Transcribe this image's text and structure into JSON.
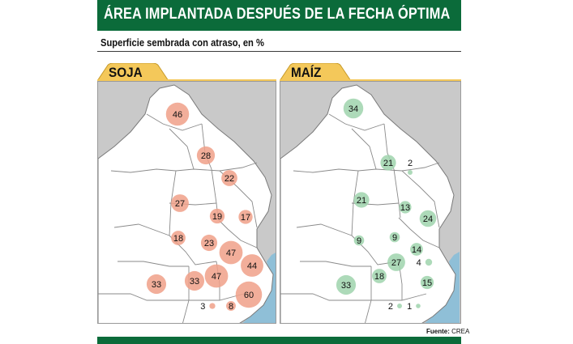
{
  "title": "ÁREA IMPLANTADA DESPUÉS DE LA FECHA ÓPTIMA",
  "subtitle": "Superficie sembrada con atraso, en %",
  "source_label": "Fuente:",
  "source_value": "CREA",
  "colors": {
    "header": "#0b6b3a",
    "soja_bubble": "#f0a088",
    "maiz_bubble": "#9fd3ad",
    "province_fill": "#ffffff",
    "background_fill": "#c9c9c9",
    "sea": "#8fbfd7",
    "tab_fill": "#f4c85a"
  },
  "maps": [
    {
      "label": "SOJA",
      "values": [
        {
          "region": "noa",
          "value": 46
        },
        {
          "region": "chaco",
          "value": 28
        },
        {
          "region": "norte-santa-fe",
          "value": 22
        },
        {
          "region": "norte-cordoba",
          "value": 27
        },
        {
          "region": "centro-santa-fe",
          "value": 19
        },
        {
          "region": "entre-rios",
          "value": 17
        },
        {
          "region": "sur-cordoba",
          "value": 18
        },
        {
          "region": "sur-santa-fe",
          "value": 23
        },
        {
          "region": "norte-buenos-aires",
          "value": 47
        },
        {
          "region": "buenos-aires-costa",
          "value": 44
        },
        {
          "region": "oeste-arenoso",
          "value": 33
        },
        {
          "region": "oeste",
          "value": 33
        },
        {
          "region": "centro-buenos-aires",
          "value": 47
        },
        {
          "region": "sudeste",
          "value": 60
        },
        {
          "region": "sur-bs-as-oeste",
          "value": 3
        },
        {
          "region": "sur-bs-as-este",
          "value": 8
        }
      ]
    },
    {
      "label": "MAÍZ",
      "values": [
        {
          "region": "noa",
          "value": 34
        },
        {
          "region": "chaco",
          "value": 21
        },
        {
          "region": "norte-santa-fe",
          "value": 2
        },
        {
          "region": "norte-cordoba",
          "value": 21
        },
        {
          "region": "centro-santa-fe",
          "value": 13
        },
        {
          "region": "entre-rios",
          "value": 24
        },
        {
          "region": "sur-cordoba",
          "value": 9
        },
        {
          "region": "sur-santa-fe",
          "value": 9
        },
        {
          "region": "norte-buenos-aires",
          "value": 14
        },
        {
          "region": "buenos-aires-costa",
          "value": 4
        },
        {
          "region": "oeste-arenoso",
          "value": 33
        },
        {
          "region": "oeste",
          "value": 18
        },
        {
          "region": "centro-buenos-aires",
          "value": 27
        },
        {
          "region": "sudeste",
          "value": 15
        },
        {
          "region": "sur-bs-as-oeste",
          "value": 2
        },
        {
          "region": "sur-bs-as-este",
          "value": 1
        }
      ]
    }
  ]
}
